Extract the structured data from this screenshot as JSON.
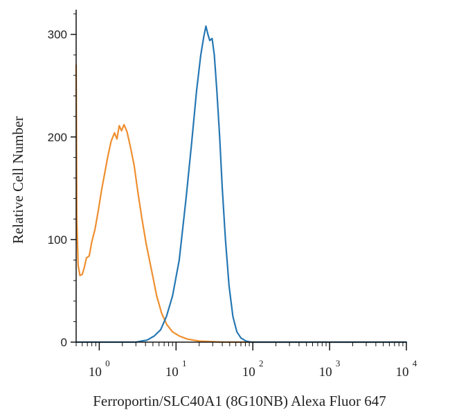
{
  "chart_data": {
    "type": "line",
    "title": "",
    "xlabel": "Ferroportin/SLC40A1 (8G10NB) Alexa Fluor 647",
    "ylabel": "Relative Cell Number",
    "x_scale": "log",
    "xlim": [
      0.5,
      10000
    ],
    "ylim": [
      0,
      320
    ],
    "y_ticks": [
      0,
      100,
      200,
      300
    ],
    "x_decades": [
      {
        "base": "10",
        "exp": "0",
        "value": 1
      },
      {
        "base": "10",
        "exp": "1",
        "value": 10
      },
      {
        "base": "10",
        "exp": "2",
        "value": 100
      },
      {
        "base": "10",
        "exp": "3",
        "value": 1000
      },
      {
        "base": "10",
        "exp": "4",
        "value": 10000
      }
    ],
    "grid": false,
    "legend": "none",
    "series": [
      {
        "color": "#ef8e2e",
        "points": [
          [
            0.5,
            270
          ],
          [
            0.51,
            120
          ],
          [
            0.53,
            75
          ],
          [
            0.56,
            65
          ],
          [
            0.6,
            66
          ],
          [
            0.64,
            73
          ],
          [
            0.68,
            82
          ],
          [
            0.74,
            84
          ],
          [
            0.8,
            98
          ],
          [
            0.88,
            110
          ],
          [
            0.97,
            128
          ],
          [
            1.07,
            148
          ],
          [
            1.18,
            165
          ],
          [
            1.3,
            182
          ],
          [
            1.43,
            196
          ],
          [
            1.58,
            204
          ],
          [
            1.7,
            198
          ],
          [
            1.82,
            211
          ],
          [
            1.95,
            206
          ],
          [
            2.1,
            212
          ],
          [
            2.3,
            205
          ],
          [
            2.55,
            190
          ],
          [
            2.85,
            172
          ],
          [
            3.2,
            145
          ],
          [
            3.6,
            120
          ],
          [
            4.1,
            95
          ],
          [
            4.8,
            70
          ],
          [
            5.6,
            45
          ],
          [
            6.5,
            28
          ],
          [
            7.6,
            17
          ],
          [
            9,
            10
          ],
          [
            11,
            6
          ],
          [
            14,
            3
          ],
          [
            20,
            1
          ],
          [
            40,
            0
          ],
          [
            10000,
            0
          ]
        ]
      },
      {
        "color": "#2577b3",
        "points": [
          [
            0.5,
            0
          ],
          [
            3,
            0
          ],
          [
            3.5,
            1
          ],
          [
            4.2,
            2
          ],
          [
            5.2,
            6
          ],
          [
            6.3,
            12
          ],
          [
            7.5,
            25
          ],
          [
            9,
            45
          ],
          [
            11,
            80
          ],
          [
            13.5,
            140
          ],
          [
            16,
            195
          ],
          [
            18.5,
            245
          ],
          [
            21,
            280
          ],
          [
            23,
            298
          ],
          [
            24.5,
            308
          ],
          [
            26,
            300
          ],
          [
            27.5,
            294
          ],
          [
            29.5,
            296
          ],
          [
            31.5,
            280
          ],
          [
            34,
            245
          ],
          [
            37,
            200
          ],
          [
            40,
            150
          ],
          [
            44,
            100
          ],
          [
            49,
            55
          ],
          [
            55,
            25
          ],
          [
            62,
            10
          ],
          [
            70,
            4
          ],
          [
            82,
            1
          ],
          [
            95,
            0
          ],
          [
            10000,
            0
          ]
        ]
      }
    ]
  }
}
